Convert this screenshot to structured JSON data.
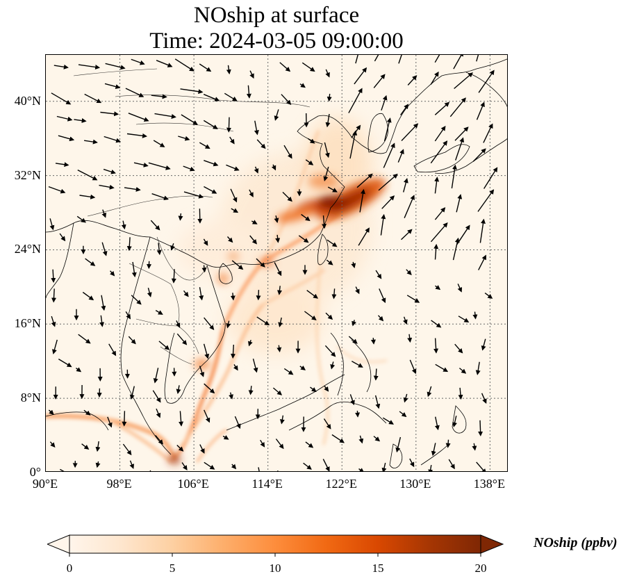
{
  "title": {
    "line1": "NOship at surface",
    "line2": "Time: 2024-03-05 09:00:00"
  },
  "map": {
    "extent_lon": [
      90,
      140
    ],
    "extent_lat": [
      0,
      45
    ],
    "x_ticks": [
      {
        "value": 90,
        "label": "90°E"
      },
      {
        "value": 98,
        "label": "98°E"
      },
      {
        "value": 106,
        "label": "106°E"
      },
      {
        "value": 114,
        "label": "114°E"
      },
      {
        "value": 122,
        "label": "122°E"
      },
      {
        "value": 130,
        "label": "130°E"
      },
      {
        "value": 138,
        "label": "138°E"
      }
    ],
    "y_ticks": [
      {
        "value": 0,
        "label": "0°"
      },
      {
        "value": 8,
        "label": "8°N"
      },
      {
        "value": 16,
        "label": "16°N"
      },
      {
        "value": 24,
        "label": "24°N"
      },
      {
        "value": 32,
        "label": "32°N"
      },
      {
        "value": 40,
        "label": "40°N"
      }
    ],
    "gridlines": true,
    "vectors": "wind-arrows"
  },
  "colorbar": {
    "label": "NOship (ppbv)",
    "min": 0,
    "max": 20,
    "extend": "both",
    "colormap": [
      "#fff5eb",
      "#fee6ce",
      "#fdd0a2",
      "#fdae6b",
      "#fd8d3c",
      "#f16913",
      "#d94801",
      "#a63603",
      "#7f2704"
    ],
    "ticks": [
      {
        "value": 0,
        "label": "0"
      },
      {
        "value": 5,
        "label": "5"
      },
      {
        "value": 10,
        "label": "10"
      },
      {
        "value": 15,
        "label": "15"
      },
      {
        "value": 20,
        "label": "20"
      }
    ]
  }
}
